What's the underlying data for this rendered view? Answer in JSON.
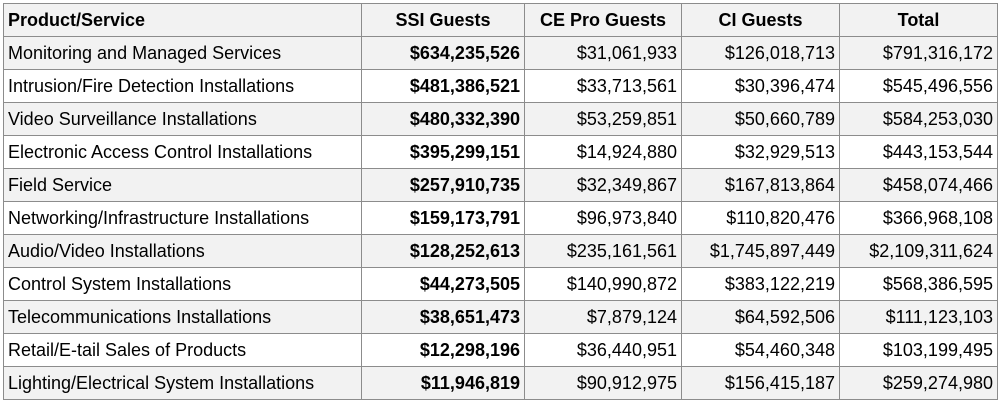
{
  "table": {
    "headers": [
      "Product/Service",
      "SSI Guests",
      "CE Pro Guests",
      "CI Guests",
      "Total"
    ],
    "rows": [
      [
        "Monitoring and Managed Services",
        "$634,235,526",
        "$31,061,933",
        "$126,018,713",
        "$791,316,172"
      ],
      [
        "Intrusion/Fire Detection Installations",
        "$481,386,521",
        "$33,713,561",
        "$30,396,474",
        "$545,496,556"
      ],
      [
        "Video Surveillance Installations",
        "$480,332,390",
        "$53,259,851",
        "$50,660,789",
        "$584,253,030"
      ],
      [
        "Electronic Access Control Installations",
        "$395,299,151",
        "$14,924,880",
        "$32,929,513",
        "$443,153,544"
      ],
      [
        "Field Service",
        "$257,910,735",
        "$32,349,867",
        "$167,813,864",
        "$458,074,466"
      ],
      [
        "Networking/Infrastructure Installations",
        "$159,173,791",
        "$96,973,840",
        "$110,820,476",
        "$366,968,108"
      ],
      [
        "Audio/Video Installations",
        "$128,252,613",
        "$235,161,561",
        "$1,745,897,449",
        "$2,109,311,624"
      ],
      [
        "Control System Installations",
        "$44,273,505",
        "$140,990,872",
        "$383,122,219",
        "$568,386,595"
      ],
      [
        "Telecommunications Installations",
        "$38,651,473",
        "$7,879,124",
        "$64,592,506",
        "$111,123,103"
      ],
      [
        "Retail/E-tail Sales of Products",
        "$12,298,196",
        "$36,440,951",
        "$54,460,348",
        "$103,199,495"
      ],
      [
        "Lighting/Electrical System Installations",
        "$11,946,819",
        "$90,912,975",
        "$156,415,187",
        "$259,274,980"
      ]
    ]
  }
}
